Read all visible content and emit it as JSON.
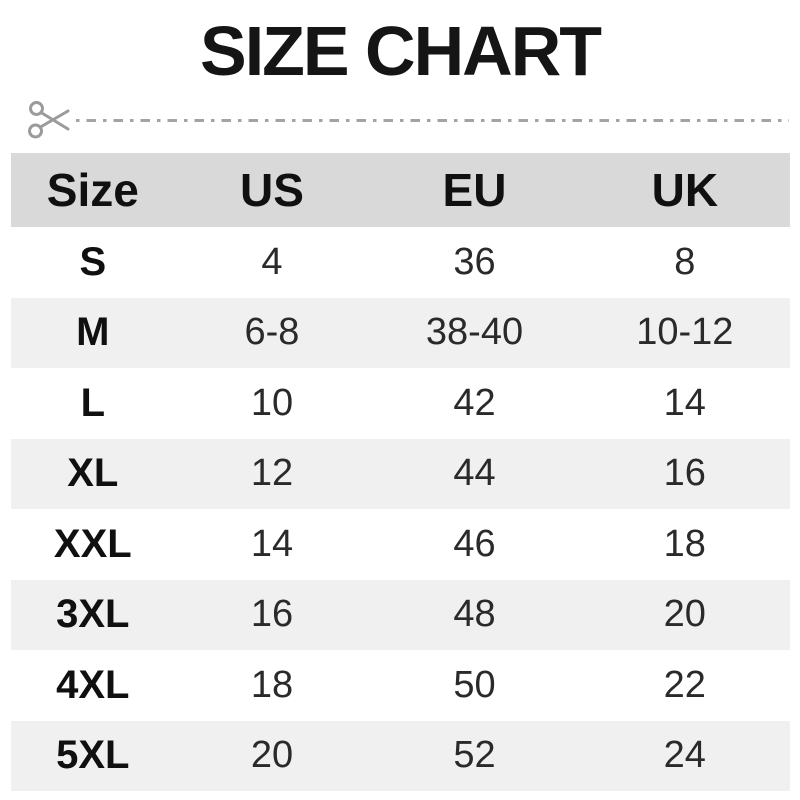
{
  "title": "SIZE CHART",
  "cut_line": {
    "icon": "scissors",
    "line_color": "#a3a3a3"
  },
  "colors": {
    "header_bg": "#d9d9d9",
    "stripe_bg": "#f0f0f0",
    "title_color": "#151515",
    "value_color": "#2a2a2a"
  },
  "chart_data": {
    "type": "table",
    "title": "SIZE CHART",
    "columns": [
      "Size",
      "US",
      "EU",
      "UK"
    ],
    "rows": [
      [
        "S",
        "4",
        "36",
        "8"
      ],
      [
        "M",
        "6-8",
        "38-40",
        "10-12"
      ],
      [
        "L",
        "10",
        "42",
        "14"
      ],
      [
        "XL",
        "12",
        "44",
        "16"
      ],
      [
        "XXL",
        "14",
        "46",
        "18"
      ],
      [
        "3XL",
        "16",
        "48",
        "20"
      ],
      [
        "4XL",
        "18",
        "50",
        "22"
      ],
      [
        "5XL",
        "20",
        "52",
        "24"
      ]
    ],
    "layout": {
      "striped_rows": [
        "M",
        "XL",
        "3XL",
        "5XL"
      ],
      "header_row_shaded": true
    }
  }
}
